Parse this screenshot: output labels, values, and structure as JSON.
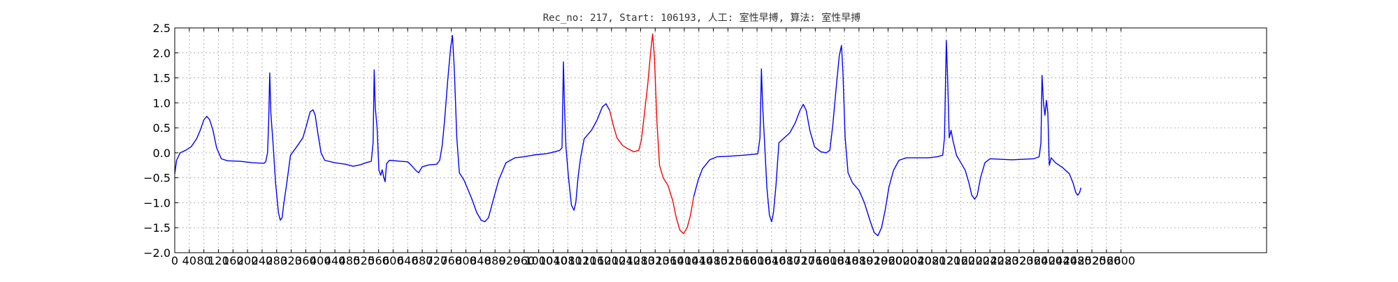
{
  "chart_data": {
    "type": "line",
    "title": "Rec_no: 217, Start: 106193, 人工: 室性早搏, 算法: 室性早搏",
    "xlabel": "",
    "ylabel": "",
    "xlim": [
      0,
      3000
    ],
    "ylim": [
      -2.0,
      2.5
    ],
    "grid": true,
    "x_ticks": [
      0,
      40,
      80,
      120,
      160,
      200,
      240,
      280,
      320,
      360,
      400,
      440,
      480,
      520,
      560,
      600,
      640,
      680,
      720,
      760,
      800,
      840,
      880,
      920,
      960,
      1000,
      1040,
      1080,
      1120,
      1160,
      1200,
      1240,
      1280,
      1320,
      1360,
      1400,
      1440,
      1480,
      1520,
      1560,
      1600,
      1640,
      1680,
      1720,
      1760,
      1800,
      1840,
      1880,
      1920,
      1960,
      2000,
      2040,
      2080,
      2120,
      2160,
      2200,
      2240,
      2280,
      2320,
      2360,
      2400,
      2440,
      2480,
      2520,
      2560,
      2600
    ],
    "y_ticks": [
      -2.0,
      -1.5,
      -1.0,
      -0.5,
      0.0,
      0.5,
      1.0,
      1.5,
      2.0,
      2.5
    ],
    "y_tick_labels": [
      "−2.0",
      "−1.5",
      "−1.0",
      "−0.5",
      "0.0",
      "0.5",
      "1.0",
      "1.5",
      "2.0",
      "2.5"
    ],
    "series": [
      {
        "color": "#0000ff",
        "points": [
          [
            0,
            -0.42
          ],
          [
            5,
            -0.15
          ],
          [
            15,
            0.0
          ],
          [
            30,
            0.05
          ],
          [
            45,
            0.12
          ],
          [
            60,
            0.28
          ],
          [
            70,
            0.45
          ],
          [
            80,
            0.66
          ],
          [
            88,
            0.73
          ],
          [
            96,
            0.66
          ],
          [
            105,
            0.45
          ],
          [
            115,
            0.1
          ],
          [
            128,
            -0.12
          ],
          [
            145,
            -0.16
          ],
          [
            180,
            -0.17
          ],
          [
            215,
            -0.2
          ],
          [
            245,
            -0.21
          ],
          [
            250,
            -0.18
          ],
          [
            255,
            0.0
          ],
          [
            258,
            0.6
          ],
          [
            261,
            1.6
          ],
          [
            264,
            0.8
          ],
          [
            270,
            0.2
          ],
          [
            277,
            -0.6
          ],
          [
            285,
            -1.2
          ],
          [
            290,
            -1.35
          ],
          [
            295,
            -1.3
          ],
          [
            300,
            -1.0
          ],
          [
            308,
            -0.6
          ],
          [
            318,
            -0.05
          ],
          [
            335,
            0.12
          ],
          [
            352,
            0.3
          ],
          [
            362,
            0.55
          ],
          [
            372,
            0.82
          ],
          [
            380,
            0.86
          ],
          [
            386,
            0.75
          ],
          [
            393,
            0.4
          ],
          [
            402,
            0.0
          ],
          [
            412,
            -0.15
          ],
          [
            440,
            -0.2
          ],
          [
            470,
            -0.23
          ],
          [
            490,
            -0.27
          ],
          [
            510,
            -0.24
          ],
          [
            525,
            -0.2
          ],
          [
            540,
            -0.17
          ],
          [
            545,
            0.2
          ],
          [
            548,
            1.66
          ],
          [
            551,
            0.9
          ],
          [
            556,
            0.5
          ],
          [
            561,
            -0.35
          ],
          [
            566,
            -0.45
          ],
          [
            570,
            -0.34
          ],
          [
            574,
            -0.48
          ],
          [
            578,
            -0.58
          ],
          [
            582,
            -0.22
          ],
          [
            590,
            -0.15
          ],
          [
            620,
            -0.17
          ],
          [
            640,
            -0.18
          ],
          [
            650,
            -0.25
          ],
          [
            662,
            -0.35
          ],
          [
            670,
            -0.4
          ],
          [
            680,
            -0.28
          ],
          [
            700,
            -0.24
          ],
          [
            720,
            -0.23
          ],
          [
            728,
            -0.15
          ],
          [
            735,
            0.15
          ],
          [
            742,
            0.7
          ],
          [
            750,
            1.45
          ],
          [
            758,
            2.1
          ],
          [
            763,
            2.35
          ],
          [
            768,
            1.7
          ],
          [
            775,
            0.3
          ],
          [
            782,
            -0.4
          ],
          [
            795,
            -0.55
          ],
          [
            815,
            -0.9
          ],
          [
            830,
            -1.2
          ],
          [
            842,
            -1.35
          ],
          [
            852,
            -1.38
          ],
          [
            862,
            -1.3
          ],
          [
            875,
            -0.95
          ],
          [
            890,
            -0.55
          ],
          [
            910,
            -0.2
          ],
          [
            935,
            -0.1
          ],
          [
            960,
            -0.08
          ],
          [
            990,
            -0.04
          ],
          [
            1020,
            -0.02
          ],
          [
            1045,
            0.02
          ],
          [
            1058,
            0.05
          ],
          [
            1064,
            0.1
          ],
          [
            1068,
            1.82
          ],
          [
            1071,
            0.9
          ],
          [
            1075,
            0.1
          ],
          [
            1082,
            -0.5
          ],
          [
            1090,
            -1.05
          ],
          [
            1097,
            -1.15
          ],
          [
            1102,
            -1.0
          ],
          [
            1108,
            -0.5
          ],
          [
            1115,
            -0.1
          ],
          [
            1125,
            0.28
          ],
          [
            1145,
            0.45
          ],
          [
            1160,
            0.65
          ],
          [
            1175,
            0.92
          ],
          [
            1185,
            0.98
          ],
          [
            1195,
            0.85
          ]
        ]
      },
      {
        "color": "#ff0000",
        "points": [
          [
            1195,
            0.85
          ],
          [
            1205,
            0.55
          ],
          [
            1215,
            0.3
          ],
          [
            1230,
            0.15
          ],
          [
            1245,
            0.08
          ],
          [
            1262,
            0.02
          ],
          [
            1275,
            0.05
          ],
          [
            1282,
            0.25
          ],
          [
            1290,
            0.75
          ],
          [
            1300,
            1.4
          ],
          [
            1308,
            2.05
          ],
          [
            1313,
            2.38
          ],
          [
            1318,
            1.9
          ],
          [
            1325,
            0.6
          ],
          [
            1332,
            -0.25
          ],
          [
            1342,
            -0.5
          ],
          [
            1355,
            -0.65
          ],
          [
            1368,
            -0.95
          ],
          [
            1378,
            -1.3
          ],
          [
            1388,
            -1.55
          ],
          [
            1398,
            -1.62
          ],
          [
            1408,
            -1.5
          ],
          [
            1417,
            -1.25
          ],
          [
            1426,
            -0.88
          ]
        ]
      },
      {
        "color": "#0000ff",
        "points": [
          [
            1426,
            -0.88
          ],
          [
            1438,
            -0.55
          ],
          [
            1450,
            -0.32
          ],
          [
            1470,
            -0.14
          ],
          [
            1490,
            -0.08
          ],
          [
            1520,
            -0.07
          ],
          [
            1560,
            -0.05
          ],
          [
            1590,
            -0.03
          ],
          [
            1602,
            -0.02
          ],
          [
            1608,
            0.3
          ],
          [
            1612,
            1.68
          ],
          [
            1615,
            1.0
          ],
          [
            1620,
            0.3
          ],
          [
            1627,
            -0.7
          ],
          [
            1634,
            -1.25
          ],
          [
            1640,
            -1.38
          ],
          [
            1645,
            -1.2
          ],
          [
            1652,
            -0.65
          ],
          [
            1660,
            0.2
          ],
          [
            1672,
            0.28
          ],
          [
            1690,
            0.4
          ],
          [
            1705,
            0.6
          ],
          [
            1718,
            0.85
          ],
          [
            1727,
            0.97
          ],
          [
            1735,
            0.85
          ],
          [
            1745,
            0.45
          ],
          [
            1758,
            0.12
          ],
          [
            1775,
            0.02
          ],
          [
            1790,
            0.0
          ],
          [
            1800,
            0.05
          ],
          [
            1808,
            0.55
          ],
          [
            1818,
            1.35
          ],
          [
            1826,
            1.95
          ],
          [
            1832,
            2.15
          ],
          [
            1836,
            1.6
          ],
          [
            1842,
            0.3
          ],
          [
            1850,
            -0.4
          ],
          [
            1862,
            -0.6
          ],
          [
            1880,
            -0.75
          ],
          [
            1895,
            -1.0
          ],
          [
            1910,
            -1.35
          ],
          [
            1922,
            -1.6
          ],
          [
            1932,
            -1.66
          ],
          [
            1942,
            -1.5
          ],
          [
            1952,
            -1.15
          ],
          [
            1962,
            -0.7
          ],
          [
            1975,
            -0.35
          ],
          [
            1990,
            -0.15
          ],
          [
            2010,
            -0.1
          ],
          [
            2040,
            -0.1
          ],
          [
            2070,
            -0.1
          ],
          [
            2095,
            -0.08
          ],
          [
            2110,
            -0.05
          ],
          [
            2115,
            0.3
          ],
          [
            2120,
            2.25
          ],
          [
            2124,
            1.4
          ],
          [
            2128,
            0.3
          ],
          [
            2133,
            0.45
          ],
          [
            2138,
            0.25
          ],
          [
            2148,
            -0.05
          ],
          [
            2160,
            -0.2
          ],
          [
            2172,
            -0.35
          ],
          [
            2182,
            -0.6
          ],
          [
            2190,
            -0.85
          ],
          [
            2198,
            -0.93
          ],
          [
            2205,
            -0.85
          ],
          [
            2214,
            -0.5
          ],
          [
            2226,
            -0.2
          ],
          [
            2240,
            -0.12
          ],
          [
            2270,
            -0.13
          ],
          [
            2300,
            -0.14
          ],
          [
            2330,
            -0.13
          ],
          [
            2360,
            -0.12
          ],
          [
            2375,
            -0.08
          ],
          [
            2380,
            0.2
          ],
          [
            2383,
            1.55
          ],
          [
            2387,
            1.0
          ],
          [
            2391,
            0.75
          ],
          [
            2395,
            1.05
          ],
          [
            2399,
            0.8
          ],
          [
            2403,
            -0.25
          ],
          [
            2408,
            -0.1
          ],
          [
            2420,
            -0.2
          ],
          [
            2440,
            -0.3
          ],
          [
            2458,
            -0.42
          ],
          [
            2468,
            -0.6
          ],
          [
            2476,
            -0.8
          ],
          [
            2481,
            -0.85
          ],
          [
            2486,
            -0.8
          ],
          [
            2490,
            -0.7
          ]
        ]
      }
    ]
  }
}
